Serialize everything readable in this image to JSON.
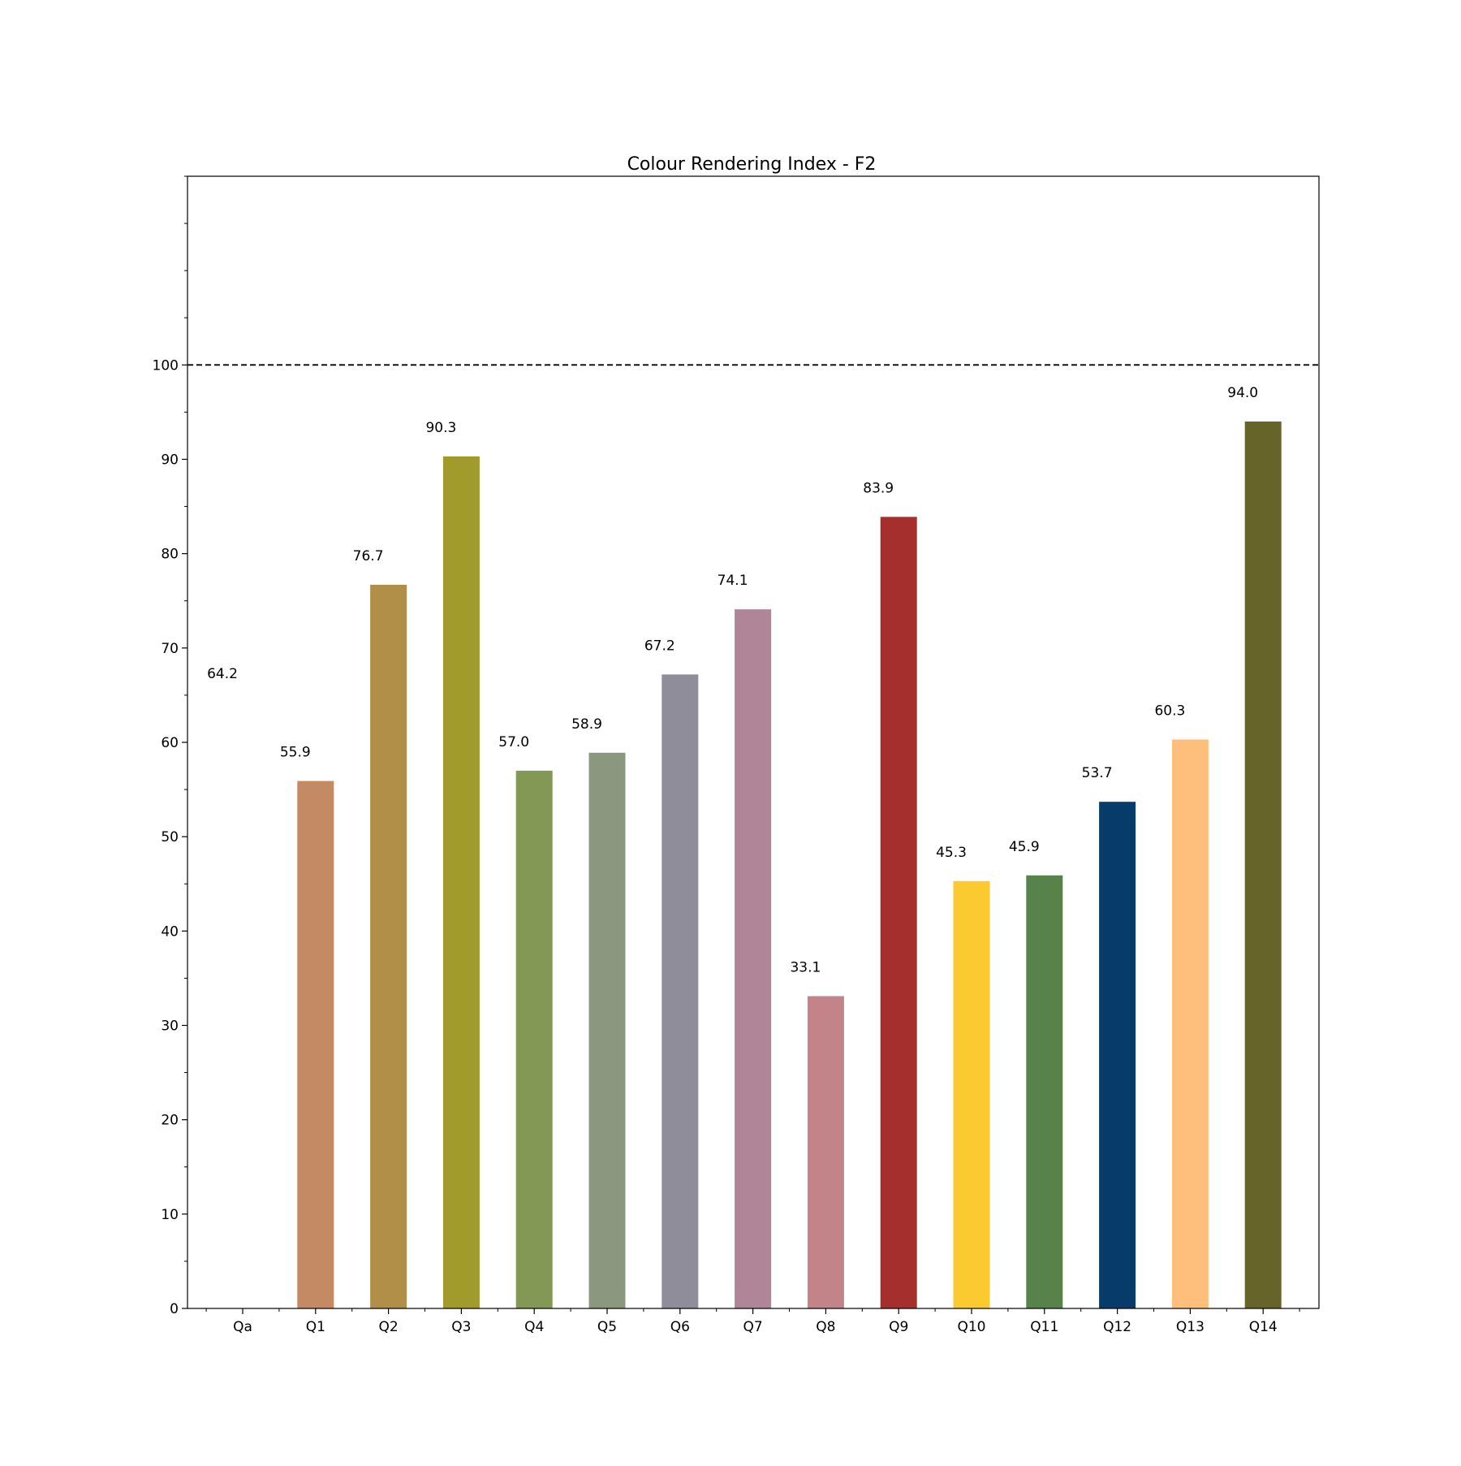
{
  "chart_data": {
    "type": "bar",
    "title": "Colour Rendering Index - F2",
    "xlabel": "",
    "ylabel": "",
    "categories": [
      "Qa",
      "Q1",
      "Q2",
      "Q3",
      "Q4",
      "Q5",
      "Q6",
      "Q7",
      "Q8",
      "Q9",
      "Q10",
      "Q11",
      "Q12",
      "Q13",
      "Q14"
    ],
    "values": [
      64.2,
      55.9,
      76.7,
      90.3,
      57.0,
      58.9,
      67.2,
      74.1,
      33.1,
      83.9,
      45.3,
      45.9,
      53.7,
      60.3,
      94.0
    ],
    "value_labels": [
      "64.2",
      "55.9",
      "76.7",
      "90.3",
      "57.0",
      "58.9",
      "67.2",
      "74.1",
      "33.1",
      "83.9",
      "45.3",
      "45.9",
      "53.7",
      "60.3",
      "94.0"
    ],
    "bar_colors": [
      "#ffffff",
      "#c48a63",
      "#b28f48",
      "#a19b2c",
      "#849855",
      "#8b977f",
      "#8f8d9a",
      "#af8597",
      "#c28489",
      "#a52f2d",
      "#fbc930",
      "#57834b",
      "#073c6a",
      "#febf7d",
      "#67642a"
    ],
    "ylim": [
      0,
      120
    ],
    "yticks": [
      0,
      10,
      20,
      30,
      40,
      50,
      60,
      70,
      80,
      90,
      100
    ],
    "ytick_labels": [
      "0",
      "10",
      "20",
      "30",
      "40",
      "50",
      "60",
      "70",
      "80",
      "90",
      "100"
    ],
    "reference_line": {
      "value": 100,
      "style": "dashed",
      "color": "#000000"
    },
    "grid": false,
    "legend": "none"
  }
}
